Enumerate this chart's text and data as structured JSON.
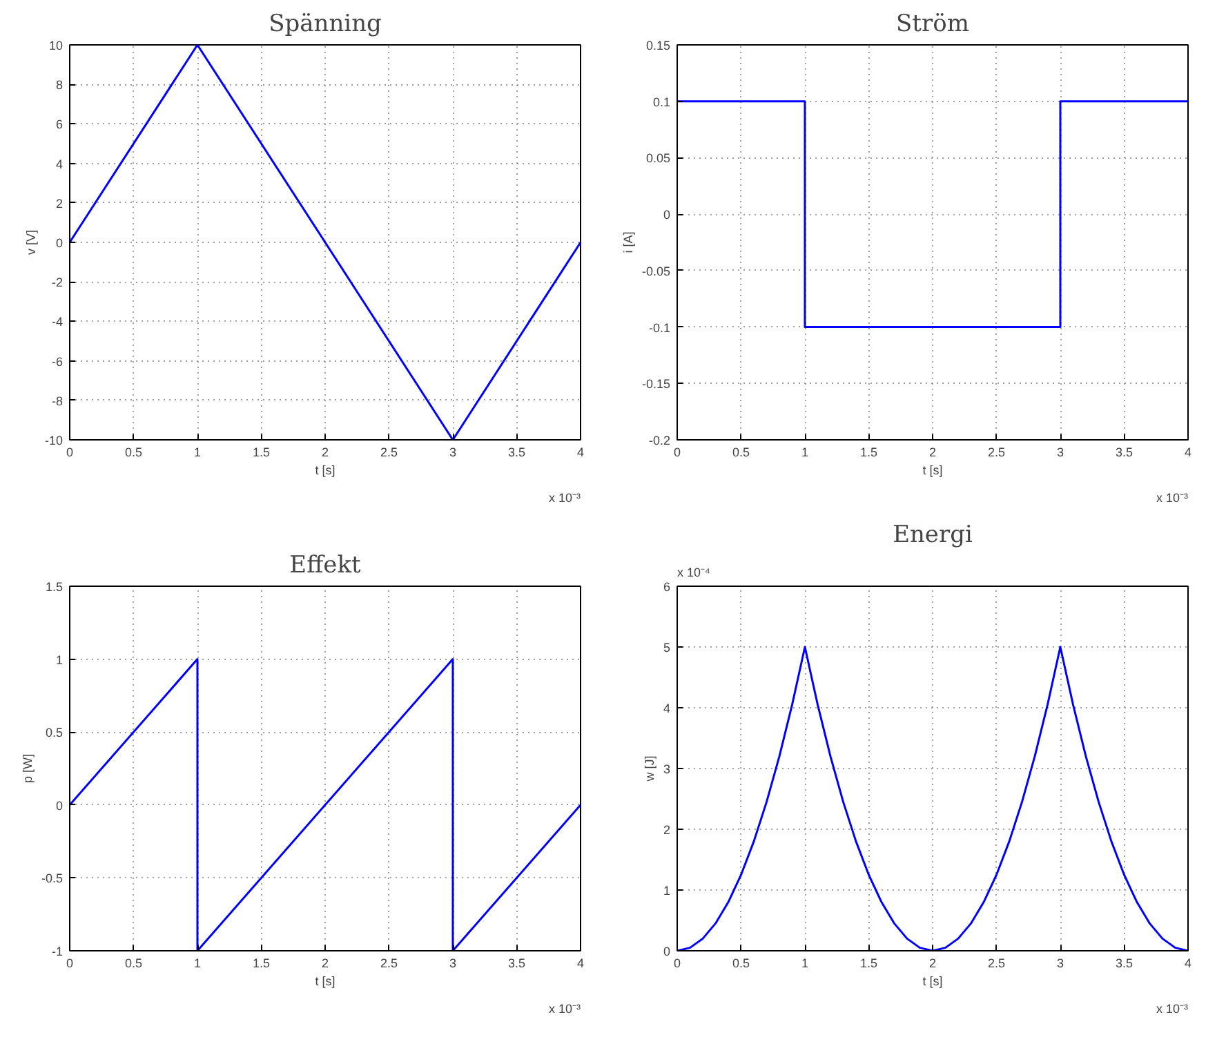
{
  "chart_data": [
    {
      "type": "line",
      "title": "Spänning",
      "xlabel": "t [s]",
      "ylabel": "v [V]",
      "color": "#0000ff",
      "grid": true,
      "x": [
        0,
        1,
        3,
        4
      ],
      "values": [
        0,
        10,
        -10,
        0
      ],
      "xlim": [
        0,
        4
      ],
      "ylim": [
        -10,
        10
      ],
      "xticks": [
        0,
        0.5,
        1,
        1.5,
        2,
        2.5,
        3,
        3.5,
        4
      ],
      "yticks": [
        -10,
        -8,
        -6,
        -4,
        -2,
        0,
        2,
        4,
        6,
        8,
        10
      ],
      "annotations": [
        "x 10⁻³"
      ]
    },
    {
      "type": "line",
      "title": "Ström",
      "xlabel": "t [s]",
      "ylabel": "i [A]",
      "color": "#0000ff",
      "grid": true,
      "x": [
        0,
        1,
        1,
        3,
        3,
        4
      ],
      "values": [
        0.1,
        0.1,
        -0.1,
        -0.1,
        0.1,
        0.1
      ],
      "xlim": [
        0,
        4
      ],
      "ylim": [
        -0.2,
        0.15
      ],
      "xticks": [
        0,
        0.5,
        1,
        1.5,
        2,
        2.5,
        3,
        3.5,
        4
      ],
      "yticks": [
        -0.2,
        -0.15,
        -0.1,
        -0.05,
        0,
        0.05,
        0.1,
        0.15
      ],
      "annotations": [
        "x 10⁻³"
      ]
    },
    {
      "type": "line",
      "title": "Effekt",
      "xlabel": "t [s]",
      "ylabel": "p [W]",
      "color": "#0000ff",
      "grid": true,
      "x": [
        0,
        1,
        1,
        3,
        3,
        4
      ],
      "values": [
        0,
        1,
        -1,
        1,
        -1,
        0
      ],
      "xlim": [
        0,
        4
      ],
      "ylim": [
        -1,
        1.5
      ],
      "xticks": [
        0,
        0.5,
        1,
        1.5,
        2,
        2.5,
        3,
        3.5,
        4
      ],
      "yticks": [
        -1,
        -0.5,
        0,
        0.5,
        1,
        1.5
      ],
      "annotations": [
        "x 10⁻³"
      ]
    },
    {
      "type": "line",
      "title": "Energi",
      "xlabel": "t [s]",
      "ylabel": "w [J]",
      "color": "#0000ff",
      "grid": true,
      "x": [
        0,
        0.1,
        0.2,
        0.3,
        0.4,
        0.5,
        0.6,
        0.7,
        0.8,
        0.9,
        1,
        1.1,
        1.2,
        1.3,
        1.4,
        1.5,
        1.6,
        1.7,
        1.8,
        1.9,
        2,
        2.1,
        2.2,
        2.3,
        2.4,
        2.5,
        2.6,
        2.7,
        2.8,
        2.9,
        3,
        3.1,
        3.2,
        3.3,
        3.4,
        3.5,
        3.6,
        3.7,
        3.8,
        3.9,
        4
      ],
      "values": [
        0,
        0.05,
        0.2,
        0.45,
        0.8,
        1.25,
        1.8,
        2.45,
        3.2,
        4.05,
        5,
        4.05,
        3.2,
        2.45,
        1.8,
        1.25,
        0.8,
        0.45,
        0.2,
        0.05,
        0,
        0.05,
        0.2,
        0.45,
        0.8,
        1.25,
        1.8,
        2.45,
        3.2,
        4.05,
        5,
        4.05,
        3.2,
        2.45,
        1.8,
        1.25,
        0.8,
        0.45,
        0.2,
        0.05,
        0
      ],
      "xlim": [
        0,
        4
      ],
      "ylim": [
        0,
        6
      ],
      "xticks": [
        0,
        0.5,
        1,
        1.5,
        2,
        2.5,
        3,
        3.5,
        4
      ],
      "yticks": [
        0,
        1,
        2,
        3,
        4,
        5,
        6
      ],
      "annotations": [
        "x 10⁻⁴",
        "x 10⁻³"
      ]
    }
  ]
}
